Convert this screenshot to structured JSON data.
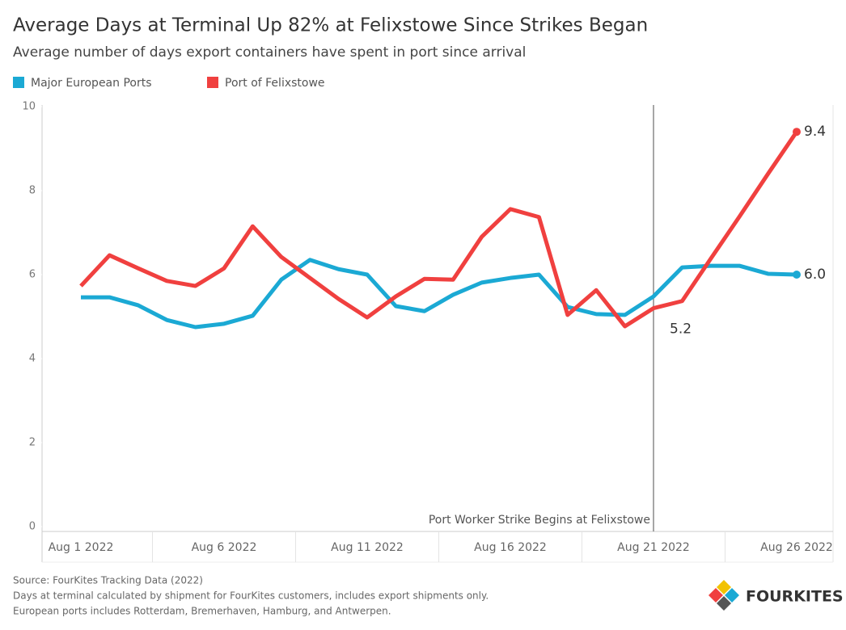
{
  "chart_data": {
    "type": "line",
    "title": "Average Days at Terminal Up 82% at Felixstowe Since Strikes Began",
    "subtitle": "Average number of days export containers have spent in port since arrival",
    "categories": [
      "Aug 1 2022",
      null,
      null,
      null,
      null,
      "Aug 6 2022",
      null,
      null,
      null,
      null,
      "Aug 11 2022",
      null,
      null,
      null,
      null,
      "Aug 16 2022",
      null,
      null,
      null,
      null,
      "Aug 21 2022",
      null,
      null,
      null,
      null,
      "Aug 26 2022"
    ],
    "series": [
      {
        "name": "Major European Ports",
        "color": "#1ba9d4",
        "values": [
          5.46,
          5.46,
          5.27,
          4.92,
          4.75,
          4.83,
          5.02,
          5.88,
          6.35,
          6.13,
          6.0,
          5.25,
          5.13,
          5.52,
          5.81,
          5.92,
          6.0,
          5.23,
          5.06,
          5.04,
          5.48,
          6.17,
          6.21,
          6.21,
          6.02,
          6.0
        ],
        "value_labels": [
          null,
          null,
          null,
          null,
          null,
          null,
          null,
          null,
          null,
          null,
          null,
          null,
          null,
          null,
          null,
          null,
          null,
          null,
          null,
          null,
          null,
          null,
          null,
          null,
          null,
          "6.0"
        ]
      },
      {
        "name": "Port of Felixstowe",
        "color": "#f0403f",
        "values": [
          5.73,
          6.46,
          6.15,
          5.85,
          5.73,
          6.15,
          7.15,
          6.42,
          5.92,
          5.42,
          4.98,
          5.48,
          5.9,
          5.88,
          6.9,
          7.56,
          7.37,
          5.04,
          5.63,
          4.77,
          5.2,
          5.37,
          6.38,
          7.38,
          8.4,
          9.4
        ],
        "value_labels": [
          null,
          null,
          null,
          null,
          null,
          null,
          null,
          null,
          null,
          null,
          null,
          null,
          null,
          null,
          null,
          null,
          null,
          null,
          null,
          null,
          "5.2",
          null,
          null,
          null,
          null,
          "9.4"
        ]
      }
    ],
    "ylim": [
      0,
      10
    ],
    "yticks": [
      0,
      2,
      4,
      6,
      8,
      10
    ],
    "grid": false,
    "annotation": {
      "text": "Port Worker Strike Begins at Felixstowe",
      "at": "Aug 21 2022"
    },
    "footnotes": [
      "Source: FourKites Tracking Data (2022)",
      "Days at terminal calculated by shipment for FourKites customers, includes export shipments only.",
      "European ports includes Rotterdam, Bremerhaven, Hamburg, and Antwerpen."
    ],
    "logo": "FOURKITES"
  }
}
